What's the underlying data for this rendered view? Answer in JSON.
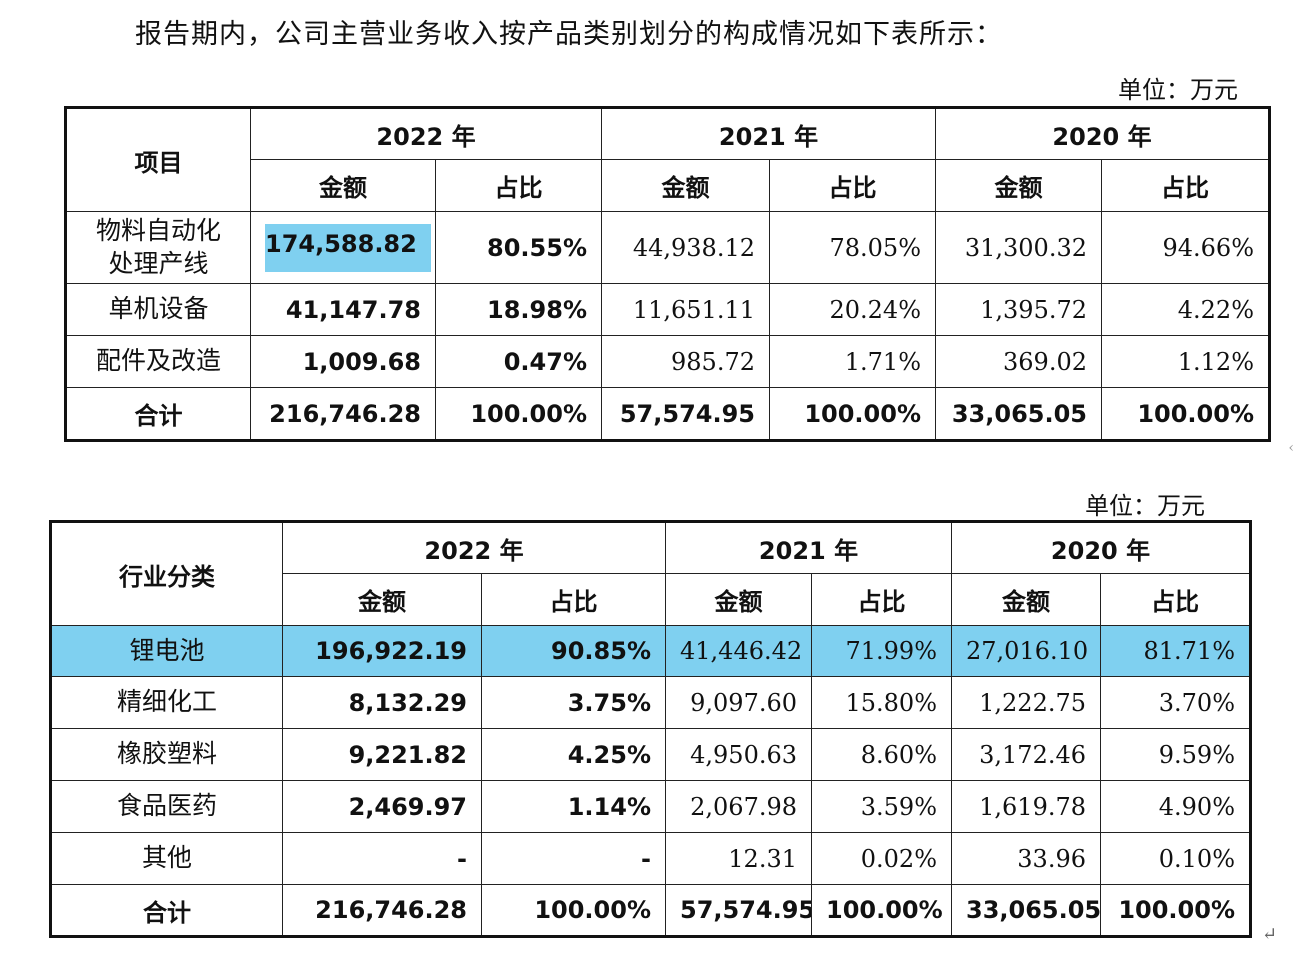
{
  "intro": "报告期内，公司主营业务收入按产品类别划分的构成情况如下表所示：",
  "unit": "单位：万元",
  "table1": {
    "first_col_header": "项目",
    "years": [
      "2022 年",
      "2021 年",
      "2020 年"
    ],
    "sub_headers": [
      "金额",
      "占比"
    ],
    "rows": [
      {
        "label": "物料自动化处理产线",
        "label_line1": "物料自动化",
        "label_line2": "处理产线",
        "values": [
          "174,588.82",
          "80.55%",
          "44,938.12",
          "78.05%",
          "31,300.32",
          "94.66%"
        ]
      },
      {
        "label": "单机设备",
        "values": [
          "41,147.78",
          "18.98%",
          "11,651.11",
          "20.24%",
          "1,395.72",
          "4.22%"
        ]
      },
      {
        "label": "配件及改造",
        "values": [
          "1,009.68",
          "0.47%",
          "985.72",
          "1.71%",
          "369.02",
          "1.12%"
        ]
      },
      {
        "label": "合计",
        "values": [
          "216,746.28",
          "100.00%",
          "57,574.95",
          "100.00%",
          "33,065.05",
          "100.00%"
        ]
      }
    ]
  },
  "table2": {
    "first_col_header": "行业分类",
    "years": [
      "2022 年",
      "2021 年",
      "2020 年"
    ],
    "sub_headers": [
      "金额",
      "占比"
    ],
    "rows": [
      {
        "label": "锂电池",
        "values": [
          "196,922.19",
          "90.85%",
          "41,446.42",
          "71.99%",
          "27,016.10",
          "81.71%"
        ]
      },
      {
        "label": "精细化工",
        "values": [
          "8,132.29",
          "3.75%",
          "9,097.60",
          "15.80%",
          "1,222.75",
          "3.70%"
        ]
      },
      {
        "label": "橡胶塑料",
        "values": [
          "9,221.82",
          "4.25%",
          "4,950.63",
          "8.60%",
          "3,172.46",
          "9.59%"
        ]
      },
      {
        "label": "食品医药",
        "values": [
          "2,469.97",
          "1.14%",
          "2,067.98",
          "3.59%",
          "1,619.78",
          "4.90%"
        ]
      },
      {
        "label": "其他",
        "values": [
          "-",
          "-",
          "12.31",
          "0.02%",
          "33.96",
          "0.10%"
        ]
      },
      {
        "label": "合计",
        "values": [
          "216,746.28",
          "100.00%",
          "57,574.95",
          "100.00%",
          "33,065.05",
          "100.00%"
        ]
      }
    ]
  },
  "colors": {
    "highlight": "#7fd0f0",
    "border": "#111111"
  },
  "marks": {
    "side": "‹",
    "enter": "↵"
  }
}
